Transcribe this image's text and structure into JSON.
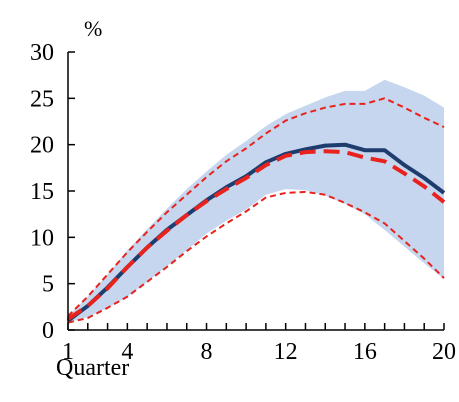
{
  "chart_data": {
    "type": "line",
    "unit_label": "%",
    "xlabel": "Quarter",
    "ylabel": "",
    "title": "",
    "x": [
      1,
      2,
      3,
      4,
      5,
      6,
      7,
      8,
      9,
      10,
      11,
      12,
      13,
      14,
      15,
      16,
      17,
      18,
      19,
      20
    ],
    "xlim": [
      1,
      20
    ],
    "ylim": [
      0,
      30
    ],
    "x_ticks": [
      1,
      4,
      8,
      12,
      16,
      20
    ],
    "y_ticks": [
      0,
      5,
      10,
      15,
      20,
      25,
      30
    ],
    "grid": false,
    "legend": "none",
    "band": {
      "upper": [
        1.5,
        3.6,
        6.0,
        8.6,
        10.9,
        13.1,
        15.2,
        17.1,
        18.9,
        20.4,
        22.0,
        23.3,
        24.2,
        25.1,
        25.8,
        25.8,
        27.0,
        26.2,
        25.3,
        24.0
      ],
      "lower": [
        0.8,
        1.4,
        2.4,
        3.6,
        5.2,
        6.9,
        8.6,
        10.4,
        11.8,
        13.0,
        14.6,
        15.2,
        15.1,
        14.5,
        13.6,
        12.5,
        10.8,
        9.0,
        7.2,
        5.5
      ],
      "color": "#c5d6ee"
    },
    "series": [
      {
        "values": [
          1.0,
          2.6,
          4.6,
          6.8,
          8.9,
          10.8,
          12.4,
          14.0,
          15.4,
          16.6,
          18.1,
          19.0,
          19.5,
          19.9,
          20.0,
          19.4,
          19.4,
          17.8,
          16.4,
          14.8
        ],
        "color": "#1f3c6e",
        "style": "solid"
      },
      {
        "values": [
          1.2,
          2.6,
          4.5,
          6.8,
          8.9,
          10.7,
          12.4,
          13.9,
          15.2,
          16.4,
          17.8,
          18.8,
          19.2,
          19.3,
          19.2,
          18.6,
          18.2,
          16.9,
          15.5,
          13.8
        ],
        "color": "#e8231e",
        "style": "dashed"
      },
      {
        "values": [
          1.5,
          3.6,
          6.0,
          8.4,
          10.6,
          12.7,
          14.6,
          16.5,
          18.2,
          19.6,
          21.2,
          22.6,
          23.4,
          24.0,
          24.4,
          24.4,
          25.0,
          24.0,
          22.9,
          21.9
        ],
        "color": "#e8231e",
        "style": "dotted-dash"
      },
      {
        "values": [
          0.8,
          1.3,
          2.4,
          3.6,
          5.2,
          6.8,
          8.5,
          10.1,
          11.5,
          12.8,
          14.3,
          14.8,
          14.9,
          14.6,
          13.7,
          12.7,
          11.5,
          9.6,
          7.7,
          5.6
        ],
        "color": "#e8231e",
        "style": "dotted-dash"
      }
    ]
  }
}
